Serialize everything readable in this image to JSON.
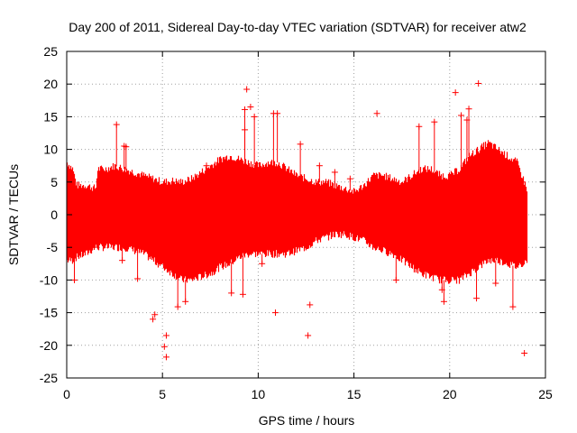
{
  "chart_data": {
    "type": "scatter",
    "title": "Day 200 of 2011, Sidereal Day-to-day VTEC variation (SDTVAR) for receiver atw2",
    "xlabel": "GPS time / hours",
    "ylabel": "SDTVAR / TECUs",
    "xlim": [
      0,
      25
    ],
    "ylim": [
      -25,
      25
    ],
    "xticks": [
      0,
      5,
      10,
      15,
      20,
      25
    ],
    "yticks": [
      -25,
      -20,
      -15,
      -10,
      -5,
      0,
      5,
      10,
      15,
      20,
      25
    ],
    "grid": true,
    "grid_style": "dotted",
    "marker": "+",
    "color": "#ff0000",
    "series": [
      {
        "name": "SDTVAR",
        "envelope": {
          "description": "dense band of samples; upper and lower bound per hour",
          "x": [
            0.0,
            0.3,
            0.5,
            1.0,
            1.5,
            1.6,
            2.0,
            2.5,
            3.0,
            3.5,
            4.0,
            4.5,
            5.0,
            5.5,
            6.0,
            6.5,
            7.0,
            7.5,
            8.0,
            8.5,
            9.0,
            9.5,
            10.0,
            10.5,
            11.0,
            11.5,
            12.0,
            12.5,
            13.0,
            13.5,
            14.0,
            14.5,
            15.0,
            15.5,
            16.0,
            16.5,
            17.0,
            17.5,
            18.0,
            18.5,
            19.0,
            19.5,
            20.0,
            20.5,
            21.0,
            21.5,
            22.0,
            22.5,
            23.0,
            23.5,
            24.0
          ],
          "upper": [
            8,
            7,
            4.5,
            4.5,
            4,
            7,
            7,
            7.5,
            7,
            6.5,
            6,
            5.5,
            5,
            5.2,
            5,
            5.5,
            6.5,
            7.5,
            8.5,
            9,
            8.5,
            8,
            7.5,
            8,
            8,
            7,
            6,
            5.5,
            5,
            5,
            4.5,
            4,
            3.5,
            4.5,
            6,
            6,
            5.5,
            5,
            6,
            7,
            7,
            6,
            6,
            7,
            9,
            10,
            11,
            10,
            9,
            8,
            4
          ],
          "lower": [
            -7,
            -7,
            -6.5,
            -6,
            -5,
            -5,
            -5,
            -5,
            -5,
            -5.5,
            -6,
            -7,
            -8,
            -9,
            -10,
            -10,
            -9.5,
            -9,
            -8,
            -7.5,
            -6.5,
            -6,
            -6,
            -6,
            -6,
            -6,
            -5.5,
            -5,
            -4,
            -3.5,
            -3,
            -3,
            -3.5,
            -4,
            -5,
            -5.5,
            -6,
            -7,
            -8,
            -9,
            -9.5,
            -10,
            -10,
            -10,
            -9,
            -8,
            -7,
            -7,
            -7.5,
            -8,
            -7
          ]
        },
        "outliers": [
          {
            "x": 9.4,
            "y": 19.2
          },
          {
            "x": 9.3,
            "y": 16.1
          },
          {
            "x": 9.6,
            "y": 16.5
          },
          {
            "x": 9.8,
            "y": 15
          },
          {
            "x": 10.8,
            "y": 15.5
          },
          {
            "x": 11.0,
            "y": 15.5
          },
          {
            "x": 2.6,
            "y": 13.8
          },
          {
            "x": 3.0,
            "y": 10.5
          },
          {
            "x": 3.1,
            "y": 10.4
          },
          {
            "x": 9.3,
            "y": 13
          },
          {
            "x": 12.2,
            "y": 10.8
          },
          {
            "x": 16.2,
            "y": 15.5
          },
          {
            "x": 20.3,
            "y": 18.7
          },
          {
            "x": 21.5,
            "y": 20.1
          },
          {
            "x": 21.0,
            "y": 16.2
          },
          {
            "x": 20.9,
            "y": 14.5
          },
          {
            "x": 19.2,
            "y": 14.2
          },
          {
            "x": 18.4,
            "y": 13.5
          },
          {
            "x": 20.6,
            "y": 15.2
          },
          {
            "x": 8.6,
            "y": -12
          },
          {
            "x": 9.2,
            "y": -12.2
          },
          {
            "x": 12.7,
            "y": -13.8
          },
          {
            "x": 10.9,
            "y": -15
          },
          {
            "x": 12.6,
            "y": -18.5
          },
          {
            "x": 23.9,
            "y": -21.2
          },
          {
            "x": 5.2,
            "y": -21.8
          },
          {
            "x": 5.1,
            "y": -20.2
          },
          {
            "x": 5.2,
            "y": -18.5
          },
          {
            "x": 4.5,
            "y": -16
          },
          {
            "x": 4.6,
            "y": -15.3
          },
          {
            "x": 3.7,
            "y": -9.8
          },
          {
            "x": 0.4,
            "y": -10
          },
          {
            "x": 2.9,
            "y": -7
          },
          {
            "x": 21.4,
            "y": -12.8
          },
          {
            "x": 23.3,
            "y": -14.1
          },
          {
            "x": 19.7,
            "y": -13.3
          },
          {
            "x": 19.6,
            "y": -11.5
          },
          {
            "x": 17.2,
            "y": -10
          },
          {
            "x": 22.4,
            "y": -10.5
          },
          {
            "x": 22.3,
            "y": -6
          },
          {
            "x": 14.8,
            "y": 5.5
          },
          {
            "x": 14.0,
            "y": 6.5
          },
          {
            "x": 13.2,
            "y": 7.5
          },
          {
            "x": 23.8,
            "y": 5
          },
          {
            "x": 6.2,
            "y": -13.3
          },
          {
            "x": 5.8,
            "y": -14.1
          },
          {
            "x": 10.2,
            "y": -7.5
          },
          {
            "x": 7.3,
            "y": 7.5
          }
        ]
      }
    ]
  }
}
